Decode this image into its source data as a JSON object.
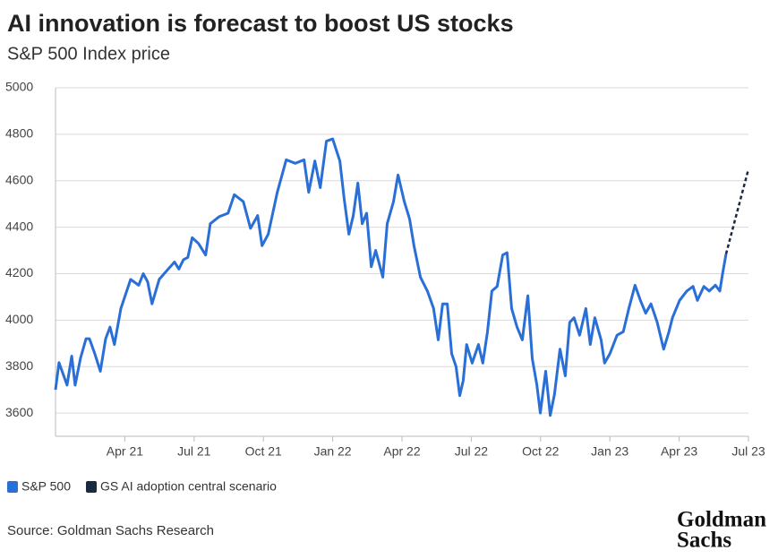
{
  "chart_data": {
    "type": "line",
    "title": "AI innovation is forecast to boost US stocks",
    "subtitle": "S&P 500 Index price",
    "source": "Source: Goldman Sachs Research",
    "logo": [
      "Goldman",
      "Sachs"
    ],
    "xlim": [
      0,
      30
    ],
    "xticks": [
      {
        "value": 3,
        "label": "Apr 21"
      },
      {
        "value": 6,
        "label": "Jul 21"
      },
      {
        "value": 9,
        "label": "Oct 21"
      },
      {
        "value": 12,
        "label": "Jan 22"
      },
      {
        "value": 15,
        "label": "Apr 22"
      },
      {
        "value": 18,
        "label": "Jul 22"
      },
      {
        "value": 21,
        "label": "Oct 22"
      },
      {
        "value": 24,
        "label": "Jan 23"
      },
      {
        "value": 27,
        "label": "Apr 23"
      },
      {
        "value": 30,
        "label": "Jul 23"
      }
    ],
    "ylim": [
      3500,
      5000
    ],
    "yticks": [
      3600,
      3800,
      4000,
      4200,
      4400,
      4600,
      4800,
      5000
    ],
    "grid": true,
    "series": [
      {
        "name": "S&P 500",
        "color": "#2a6fd6",
        "dashed": false,
        "x": [
          0,
          0.15,
          0.5,
          0.7,
          0.85,
          1.08,
          1.32,
          1.47,
          1.7,
          1.94,
          2.17,
          2.36,
          2.55,
          2.83,
          3.25,
          3.6,
          3.8,
          3.99,
          4.18,
          4.49,
          4.88,
          5.15,
          5.34,
          5.54,
          5.73,
          5.92,
          6.19,
          6.5,
          6.7,
          7.08,
          7.47,
          7.74,
          8.13,
          8.44,
          8.75,
          8.94,
          9.21,
          9.6,
          9.99,
          10.38,
          10.76,
          10.96,
          11.23,
          11.46,
          11.73,
          12.0,
          12.31,
          12.5,
          12.7,
          12.89,
          13.09,
          13.28,
          13.47,
          13.67,
          13.86,
          14.17,
          14.36,
          14.63,
          14.83,
          15.1,
          15.33,
          15.52,
          15.8,
          16.1,
          16.37,
          16.57,
          16.76,
          16.96,
          17.15,
          17.34,
          17.5,
          17.65,
          17.8,
          18.04,
          18.31,
          18.5,
          18.7,
          18.89,
          19.12,
          19.36,
          19.55,
          19.75,
          19.98,
          20.21,
          20.45,
          20.64,
          20.84,
          20.99,
          21.22,
          21.42,
          21.6,
          21.84,
          22.07,
          22.26,
          22.45,
          22.69,
          22.96,
          23.15,
          23.35,
          23.62,
          23.77,
          24.0,
          24.31,
          24.58,
          24.82,
          25.09,
          25.32,
          25.55,
          25.78,
          26.05,
          26.33,
          26.56,
          26.71,
          27.02,
          27.33,
          27.6,
          27.79,
          28.07,
          28.3,
          28.57,
          28.76,
          28.88,
          29.03
        ],
        "values": [
          3700,
          3817,
          3720,
          3845,
          3720,
          3836,
          3920,
          3920,
          3855,
          3780,
          3920,
          3970,
          3895,
          4050,
          4175,
          4150,
          4200,
          4165,
          4070,
          4175,
          4220,
          4250,
          4220,
          4260,
          4270,
          4355,
          4330,
          4280,
          4415,
          4445,
          4460,
          4540,
          4510,
          4395,
          4450,
          4320,
          4370,
          4550,
          4690,
          4675,
          4690,
          4550,
          4685,
          4570,
          4770,
          4780,
          4685,
          4520,
          4370,
          4450,
          4590,
          4415,
          4460,
          4230,
          4300,
          4185,
          4415,
          4510,
          4625,
          4510,
          4435,
          4320,
          4185,
          4125,
          4050,
          3915,
          4070,
          4070,
          3855,
          3800,
          3675,
          3740,
          3895,
          3815,
          3895,
          3815,
          3950,
          4125,
          4145,
          4280,
          4290,
          4050,
          3970,
          3915,
          4105,
          3835,
          3720,
          3600,
          3780,
          3590,
          3680,
          3875,
          3760,
          3990,
          4010,
          3935,
          4050,
          3895,
          4010,
          3915,
          3815,
          3855,
          3935,
          3950,
          4050,
          4150,
          4085,
          4030,
          4070,
          3990,
          3875,
          3950,
          4010,
          4085,
          4125,
          4145,
          4085,
          4145,
          4125,
          4150,
          4125,
          4200,
          4285
        ]
      },
      {
        "name": "GS AI adoption central scenario",
        "color": "#1a2a40",
        "dashed": true,
        "x": [
          29.03,
          30
        ],
        "values": [
          4285,
          4650
        ]
      }
    ]
  }
}
